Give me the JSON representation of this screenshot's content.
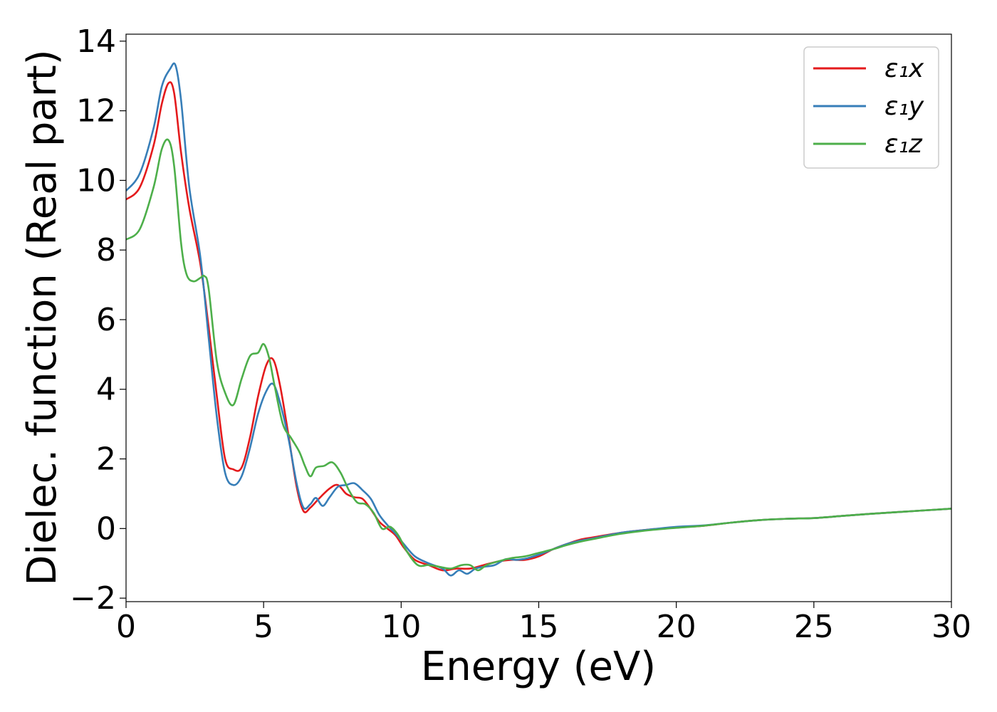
{
  "chart_data": {
    "type": "line",
    "title": "",
    "xlabel": "Energy (eV)",
    "ylabel": "Dielec. function (Real part)",
    "xlim": [
      0,
      30
    ],
    "ylim": [
      -2.1,
      14.2
    ],
    "xticks": [
      0,
      5,
      10,
      15,
      20,
      25,
      30
    ],
    "xtick_labels": [
      "0",
      "5",
      "10",
      "15",
      "20",
      "25",
      "30"
    ],
    "yticks": [
      -2,
      0,
      2,
      4,
      6,
      8,
      10,
      12,
      14
    ],
    "ytick_labels": [
      "−2",
      "0",
      "2",
      "4",
      "6",
      "8",
      "10",
      "12",
      "14"
    ],
    "grid": false,
    "legend_position": "top-right",
    "series": [
      {
        "name": "ε₁x",
        "color": "#e41a1c",
        "x": [
          0,
          0.5,
          1.0,
          1.3,
          1.55,
          1.75,
          2.0,
          2.3,
          2.7,
          3.0,
          3.3,
          3.6,
          3.9,
          4.2,
          4.5,
          4.8,
          5.1,
          5.35,
          5.6,
          5.9,
          6.2,
          6.45,
          6.7,
          7.0,
          7.4,
          7.7,
          8.0,
          8.3,
          8.6,
          8.9,
          9.2,
          9.5,
          9.8,
          10.1,
          10.5,
          11.0,
          11.5,
          12.0,
          12.5,
          13.0,
          13.5,
          14.0,
          14.5,
          15.0,
          15.5,
          16.0,
          16.5,
          17.0,
          18.0,
          19.0,
          20.0,
          21.0,
          22.0,
          23.0,
          24.0,
          25.0,
          26.0,
          27.0,
          28.0,
          29.0,
          30.0
        ],
        "y": [
          9.45,
          9.8,
          11.0,
          12.2,
          12.8,
          12.5,
          10.8,
          9.2,
          7.6,
          5.8,
          3.8,
          2.0,
          1.7,
          1.75,
          2.6,
          3.8,
          4.7,
          4.85,
          4.1,
          2.7,
          1.2,
          0.5,
          0.6,
          0.85,
          1.15,
          1.25,
          1.0,
          0.9,
          0.85,
          0.55,
          0.2,
          0.0,
          -0.2,
          -0.55,
          -0.9,
          -1.05,
          -1.2,
          -1.15,
          -1.15,
          -1.05,
          -0.95,
          -0.9,
          -0.9,
          -0.8,
          -0.6,
          -0.45,
          -0.32,
          -0.25,
          -0.12,
          -0.03,
          0.03,
          0.08,
          0.17,
          0.24,
          0.28,
          0.3,
          0.36,
          0.42,
          0.47,
          0.52,
          0.57
        ]
      },
      {
        "name": "ε₁y",
        "color": "#377eb8",
        "x": [
          0,
          0.5,
          1.0,
          1.3,
          1.6,
          1.8,
          2.0,
          2.3,
          2.7,
          3.0,
          3.3,
          3.6,
          3.9,
          4.2,
          4.5,
          4.8,
          5.1,
          5.35,
          5.6,
          5.9,
          6.2,
          6.45,
          6.7,
          6.9,
          7.15,
          7.4,
          7.7,
          8.0,
          8.3,
          8.6,
          8.9,
          9.2,
          9.5,
          9.8,
          10.1,
          10.5,
          11.0,
          11.5,
          11.8,
          12.1,
          12.4,
          12.7,
          13.0,
          13.4,
          13.8,
          14.2,
          14.6,
          15.0,
          15.5,
          16.0,
          16.5,
          17.0,
          18.0,
          19.0,
          20.0,
          21.0,
          22.0,
          23.0,
          24.0,
          25.0,
          26.0,
          27.0,
          28.0,
          29.0,
          30.0
        ],
        "y": [
          9.7,
          10.2,
          11.5,
          12.7,
          13.2,
          13.3,
          12.3,
          9.8,
          7.8,
          5.5,
          3.2,
          1.6,
          1.25,
          1.5,
          2.3,
          3.3,
          3.95,
          4.15,
          3.6,
          2.6,
          1.3,
          0.6,
          0.7,
          0.88,
          0.65,
          0.9,
          1.2,
          1.25,
          1.3,
          1.1,
          0.85,
          0.4,
          0.1,
          -0.15,
          -0.45,
          -0.8,
          -1.0,
          -1.15,
          -1.35,
          -1.2,
          -1.3,
          -1.15,
          -1.1,
          -1.05,
          -0.88,
          -0.9,
          -0.85,
          -0.75,
          -0.6,
          -0.45,
          -0.35,
          -0.28,
          -0.12,
          -0.03,
          0.05,
          0.09,
          0.17,
          0.24,
          0.28,
          0.3,
          0.36,
          0.42,
          0.47,
          0.52,
          0.57
        ]
      },
      {
        "name": "ε₁z",
        "color": "#4daf4a",
        "x": [
          0,
          0.5,
          1.0,
          1.3,
          1.55,
          1.75,
          2.0,
          2.2,
          2.45,
          2.7,
          2.85,
          3.0,
          3.3,
          3.6,
          3.9,
          4.2,
          4.5,
          4.8,
          5.0,
          5.2,
          5.4,
          5.7,
          6.0,
          6.3,
          6.5,
          6.7,
          6.9,
          7.2,
          7.5,
          7.8,
          8.1,
          8.4,
          8.7,
          9.0,
          9.3,
          9.6,
          9.9,
          10.2,
          10.6,
          11.0,
          11.4,
          11.8,
          12.2,
          12.5,
          12.8,
          13.1,
          13.5,
          14.0,
          14.5,
          15.0,
          15.5,
          16.0,
          16.5,
          17.0,
          18.0,
          19.0,
          20.0,
          21.0,
          22.0,
          23.0,
          24.0,
          25.0,
          26.0,
          27.0,
          28.0,
          29.0,
          30.0
        ],
        "y": [
          8.3,
          8.6,
          9.8,
          10.9,
          11.15,
          10.4,
          8.2,
          7.3,
          7.1,
          7.2,
          7.25,
          6.9,
          4.8,
          3.9,
          3.55,
          4.3,
          4.95,
          5.05,
          5.3,
          4.9,
          4.1,
          3.0,
          2.6,
          2.2,
          1.8,
          1.5,
          1.75,
          1.8,
          1.9,
          1.6,
          1.1,
          0.75,
          0.7,
          0.45,
          0.0,
          0.05,
          -0.2,
          -0.65,
          -1.05,
          -1.05,
          -1.1,
          -1.15,
          -1.05,
          -1.05,
          -1.2,
          -1.05,
          -0.95,
          -0.85,
          -0.8,
          -0.7,
          -0.6,
          -0.48,
          -0.38,
          -0.3,
          -0.15,
          -0.05,
          0.02,
          0.08,
          0.17,
          0.24,
          0.28,
          0.3,
          0.36,
          0.42,
          0.47,
          0.52,
          0.57
        ]
      }
    ]
  }
}
